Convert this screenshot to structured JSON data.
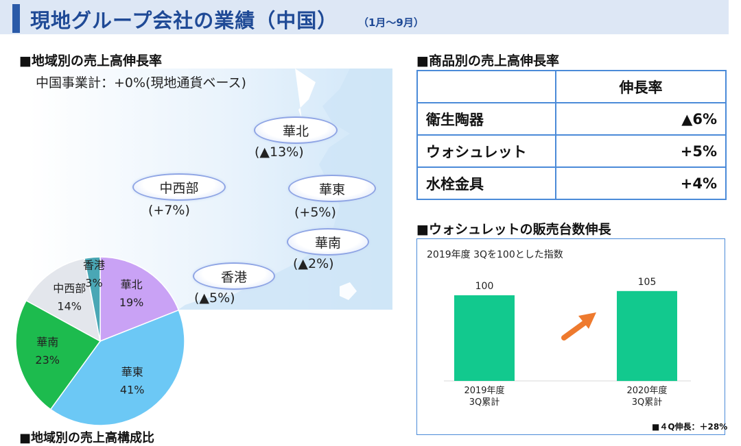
{
  "header": {
    "title": "現地グループ会社の業績（中国）",
    "period": "（1月～9月）"
  },
  "region_growth": {
    "heading": "■地域別の売上高伸長率",
    "note": "中国事業計：+0%(現地通貨ベース)",
    "regions": [
      {
        "name": "華北",
        "growth": "(▲13%)"
      },
      {
        "name": "中西部",
        "growth": "(+7%)"
      },
      {
        "name": "華東",
        "growth": "(+5%)"
      },
      {
        "name": "華南",
        "growth": "(▲2%)"
      },
      {
        "name": "香港",
        "growth": "(▲5%)"
      }
    ]
  },
  "region_share": {
    "heading": "■地域別の売上高構成比",
    "colors": [
      "#c9a2f5",
      "#6cc8f5",
      "#1dbb4e",
      "#e3e6ec",
      "#4aa7b5"
    ]
  },
  "product_growth": {
    "heading": "■商品別の売上高伸長率",
    "column_header": "伸長率",
    "rows": [
      {
        "product": "衛生陶器",
        "value": "▲6%"
      },
      {
        "product": "ウォシュレット",
        "value": "+5%"
      },
      {
        "product": "水栓金具",
        "value": "+4%"
      }
    ]
  },
  "washlet_units": {
    "heading": "■ウォシュレットの販売台数伸長",
    "note": "2019年度 3Qを100とした指数",
    "footnote": "■４Q伸長：＋28%",
    "bar_color": "#12c98e",
    "arrow_color": "#ee7a2e"
  },
  "chart_data": [
    {
      "type": "pie",
      "categories": [
        "華北",
        "華東",
        "華南",
        "中西部",
        "香港"
      ],
      "values": [
        19,
        41,
        23,
        14,
        3
      ],
      "labels": [
        "19%",
        "41%",
        "23%",
        "14%",
        "3%"
      ]
    },
    {
      "type": "bar",
      "categories": [
        "2019年度\n3Q累計",
        "2020年度\n3Q累計"
      ],
      "category_lines": [
        [
          "2019年度",
          "3Q累計"
        ],
        [
          "2020年度",
          "3Q累計"
        ]
      ],
      "values": [
        100,
        105
      ],
      "title": "2019年度 3Qを100とした指数",
      "ylim": [
        0,
        120
      ]
    }
  ]
}
